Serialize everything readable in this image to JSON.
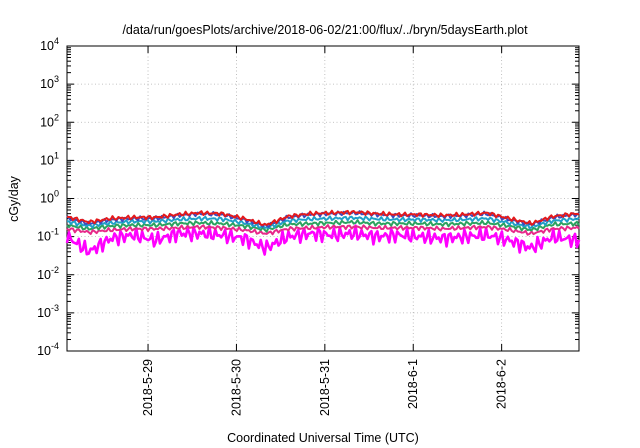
{
  "chart_data": {
    "type": "line",
    "title": "/data/run/goesPlots/archive/2018-06-02/21:00/flux/../bryn/5daysEarth.plot",
    "xlabel": "Coordinated Universal Time (UTC)",
    "ylabel": "cGy/day",
    "y_scale": "log",
    "ylim": [
      0.0001,
      10000
    ],
    "y_ticks": [
      {
        "value": 0.0001,
        "mantissa": "10",
        "exponent": "-4"
      },
      {
        "value": 0.001,
        "mantissa": "10",
        "exponent": "-3"
      },
      {
        "value": 0.01,
        "mantissa": "10",
        "exponent": "-2"
      },
      {
        "value": 0.1,
        "mantissa": "10",
        "exponent": "-1"
      },
      {
        "value": 1,
        "mantissa": "10",
        "exponent": "0"
      },
      {
        "value": 10,
        "mantissa": "10",
        "exponent": "1"
      },
      {
        "value": 100,
        "mantissa": "10",
        "exponent": "2"
      },
      {
        "value": 1000,
        "mantissa": "10",
        "exponent": "3"
      },
      {
        "value": 10000,
        "mantissa": "10",
        "exponent": "4"
      }
    ],
    "xlim": [
      "2018-05-28T02:00",
      "2018-06-02T21:00"
    ],
    "x_ticks": [
      {
        "value": "2018-05-29T00:00",
        "label": "2018-5-29"
      },
      {
        "value": "2018-05-30T00:00",
        "label": "2018-5-30"
      },
      {
        "value": "2018-05-31T00:00",
        "label": "2018-5-31"
      },
      {
        "value": "2018-06-01T00:00",
        "label": "2018-6-1"
      },
      {
        "value": "2018-06-02T00:00",
        "label": "2018-6-2"
      }
    ],
    "grid": true,
    "x": [
      "2018-05-28T02:00",
      "2018-05-28T08:00",
      "2018-05-28T14:00",
      "2018-05-28T20:00",
      "2018-05-29T02:00",
      "2018-05-29T08:00",
      "2018-05-29T14:00",
      "2018-05-29T20:00",
      "2018-05-30T02:00",
      "2018-05-30T08:00",
      "2018-05-30T14:00",
      "2018-05-30T20:00",
      "2018-05-31T02:00",
      "2018-05-31T08:00",
      "2018-05-31T14:00",
      "2018-05-31T20:00",
      "2018-06-01T02:00",
      "2018-06-01T08:00",
      "2018-06-01T14:00",
      "2018-06-01T20:00",
      "2018-06-02T02:00",
      "2018-06-02T08:00",
      "2018-06-02T14:00",
      "2018-06-02T20:00"
    ],
    "series": [
      {
        "color": "#e41a1c",
        "values": [
          0.33,
          0.24,
          0.3,
          0.32,
          0.32,
          0.38,
          0.42,
          0.4,
          0.3,
          0.2,
          0.34,
          0.4,
          0.42,
          0.44,
          0.4,
          0.38,
          0.38,
          0.36,
          0.38,
          0.42,
          0.3,
          0.22,
          0.34,
          0.4
        ]
      },
      {
        "color": "#3b4cc0",
        "values": [
          0.31,
          0.22,
          0.28,
          0.3,
          0.3,
          0.36,
          0.4,
          0.38,
          0.28,
          0.19,
          0.32,
          0.38,
          0.4,
          0.42,
          0.38,
          0.36,
          0.36,
          0.34,
          0.36,
          0.4,
          0.28,
          0.21,
          0.32,
          0.38
        ]
      },
      {
        "color": "#1fa0c8",
        "values": [
          0.25,
          0.19,
          0.23,
          0.25,
          0.25,
          0.28,
          0.3,
          0.29,
          0.23,
          0.17,
          0.26,
          0.29,
          0.3,
          0.31,
          0.29,
          0.28,
          0.28,
          0.27,
          0.28,
          0.3,
          0.23,
          0.18,
          0.26,
          0.29
        ]
      },
      {
        "color": "#2ca25f",
        "values": [
          0.2,
          0.16,
          0.19,
          0.2,
          0.2,
          0.22,
          0.23,
          0.22,
          0.19,
          0.15,
          0.21,
          0.22,
          0.23,
          0.24,
          0.22,
          0.22,
          0.22,
          0.21,
          0.22,
          0.23,
          0.19,
          0.15,
          0.21,
          0.22
        ]
      },
      {
        "color": "#e7298a",
        "values": [
          0.16,
          0.13,
          0.15,
          0.16,
          0.16,
          0.17,
          0.18,
          0.17,
          0.15,
          0.12,
          0.16,
          0.17,
          0.18,
          0.18,
          0.17,
          0.17,
          0.17,
          0.16,
          0.17,
          0.18,
          0.15,
          0.12,
          0.16,
          0.17
        ]
      },
      {
        "color": "#ff00ff",
        "values": [
          0.1,
          0.04,
          0.09,
          0.11,
          0.08,
          0.12,
          0.12,
          0.11,
          0.09,
          0.05,
          0.1,
          0.12,
          0.11,
          0.12,
          0.1,
          0.11,
          0.1,
          0.09,
          0.1,
          0.11,
          0.08,
          0.05,
          0.1,
          0.08
        ]
      }
    ]
  }
}
